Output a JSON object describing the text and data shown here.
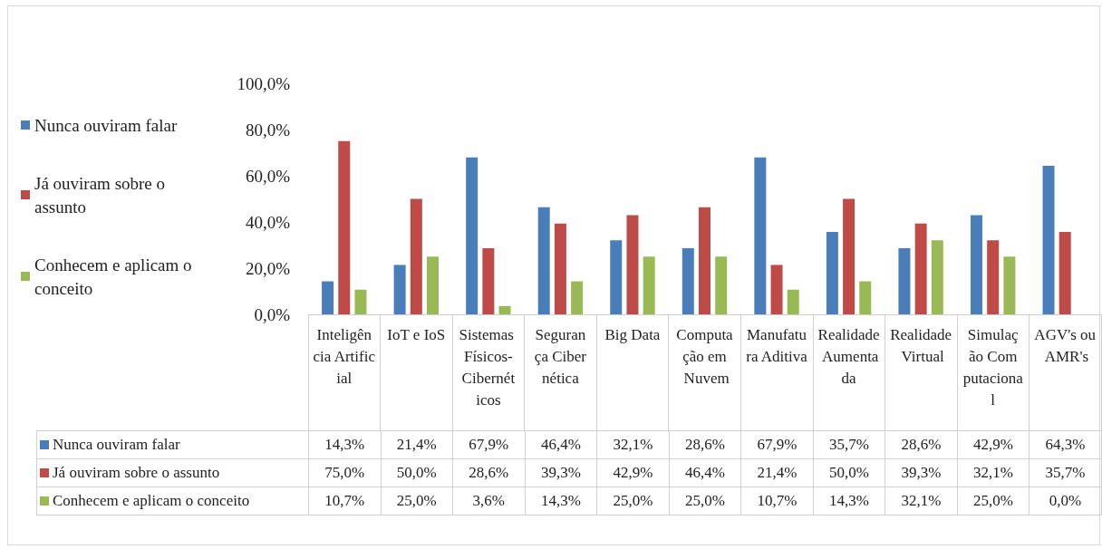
{
  "chart_data": {
    "type": "bar",
    "categories": [
      "Inteligência Artificial",
      "IoT e IoS",
      "Sistemas Físicos-Cibernéticos",
      "Segurança Cibernética",
      "Big Data",
      "Computação em Nuvem",
      "Manufatura Aditiva",
      "Realidade Aumentada",
      "Realidade Virtual",
      "Simulação Computacional",
      "AGV's ou AMR's"
    ],
    "series": [
      {
        "name": "Nunca ouviram falar",
        "color": "#4a7ebb",
        "values": [
          14.3,
          21.4,
          67.9,
          46.4,
          32.1,
          28.6,
          67.9,
          35.7,
          28.6,
          42.9,
          64.3
        ],
        "value_labels": [
          "14,3%",
          "21,4%",
          "67,9%",
          "46,4%",
          "32,1%",
          "28,6%",
          "67,9%",
          "35,7%",
          "28,6%",
          "42,9%",
          "64,3%"
        ]
      },
      {
        "name": "Já ouviram sobre o assunto",
        "color": "#be4b48",
        "values": [
          75.0,
          50.0,
          28.6,
          39.3,
          42.9,
          46.4,
          21.4,
          50.0,
          39.3,
          32.1,
          35.7
        ],
        "value_labels": [
          "75,0%",
          "50,0%",
          "28,6%",
          "39,3%",
          "42,9%",
          "46,4%",
          "21,4%",
          "50,0%",
          "39,3%",
          "32,1%",
          "35,7%"
        ]
      },
      {
        "name": "Conhecem e aplicam o conceito",
        "color": "#98b954",
        "values": [
          10.7,
          25.0,
          3.6,
          14.3,
          25.0,
          25.0,
          10.7,
          14.3,
          32.1,
          25.0,
          0.0
        ],
        "value_labels": [
          "10,7%",
          "25,0%",
          "3,6%",
          "14,3%",
          "25,0%",
          "25,0%",
          "10,7%",
          "14,3%",
          "32,1%",
          "25,0%",
          "0,0%"
        ]
      }
    ],
    "ylim": [
      0,
      100
    ],
    "yticks": [
      {
        "value": 0,
        "label": "0,0%"
      },
      {
        "value": 20,
        "label": "20,0%"
      },
      {
        "value": 40,
        "label": "40,0%"
      },
      {
        "value": 60,
        "label": "60,0%"
      },
      {
        "value": 80,
        "label": "80,0%"
      },
      {
        "value": 100,
        "label": "100,0%"
      }
    ],
    "grid": false,
    "legend": "left"
  }
}
